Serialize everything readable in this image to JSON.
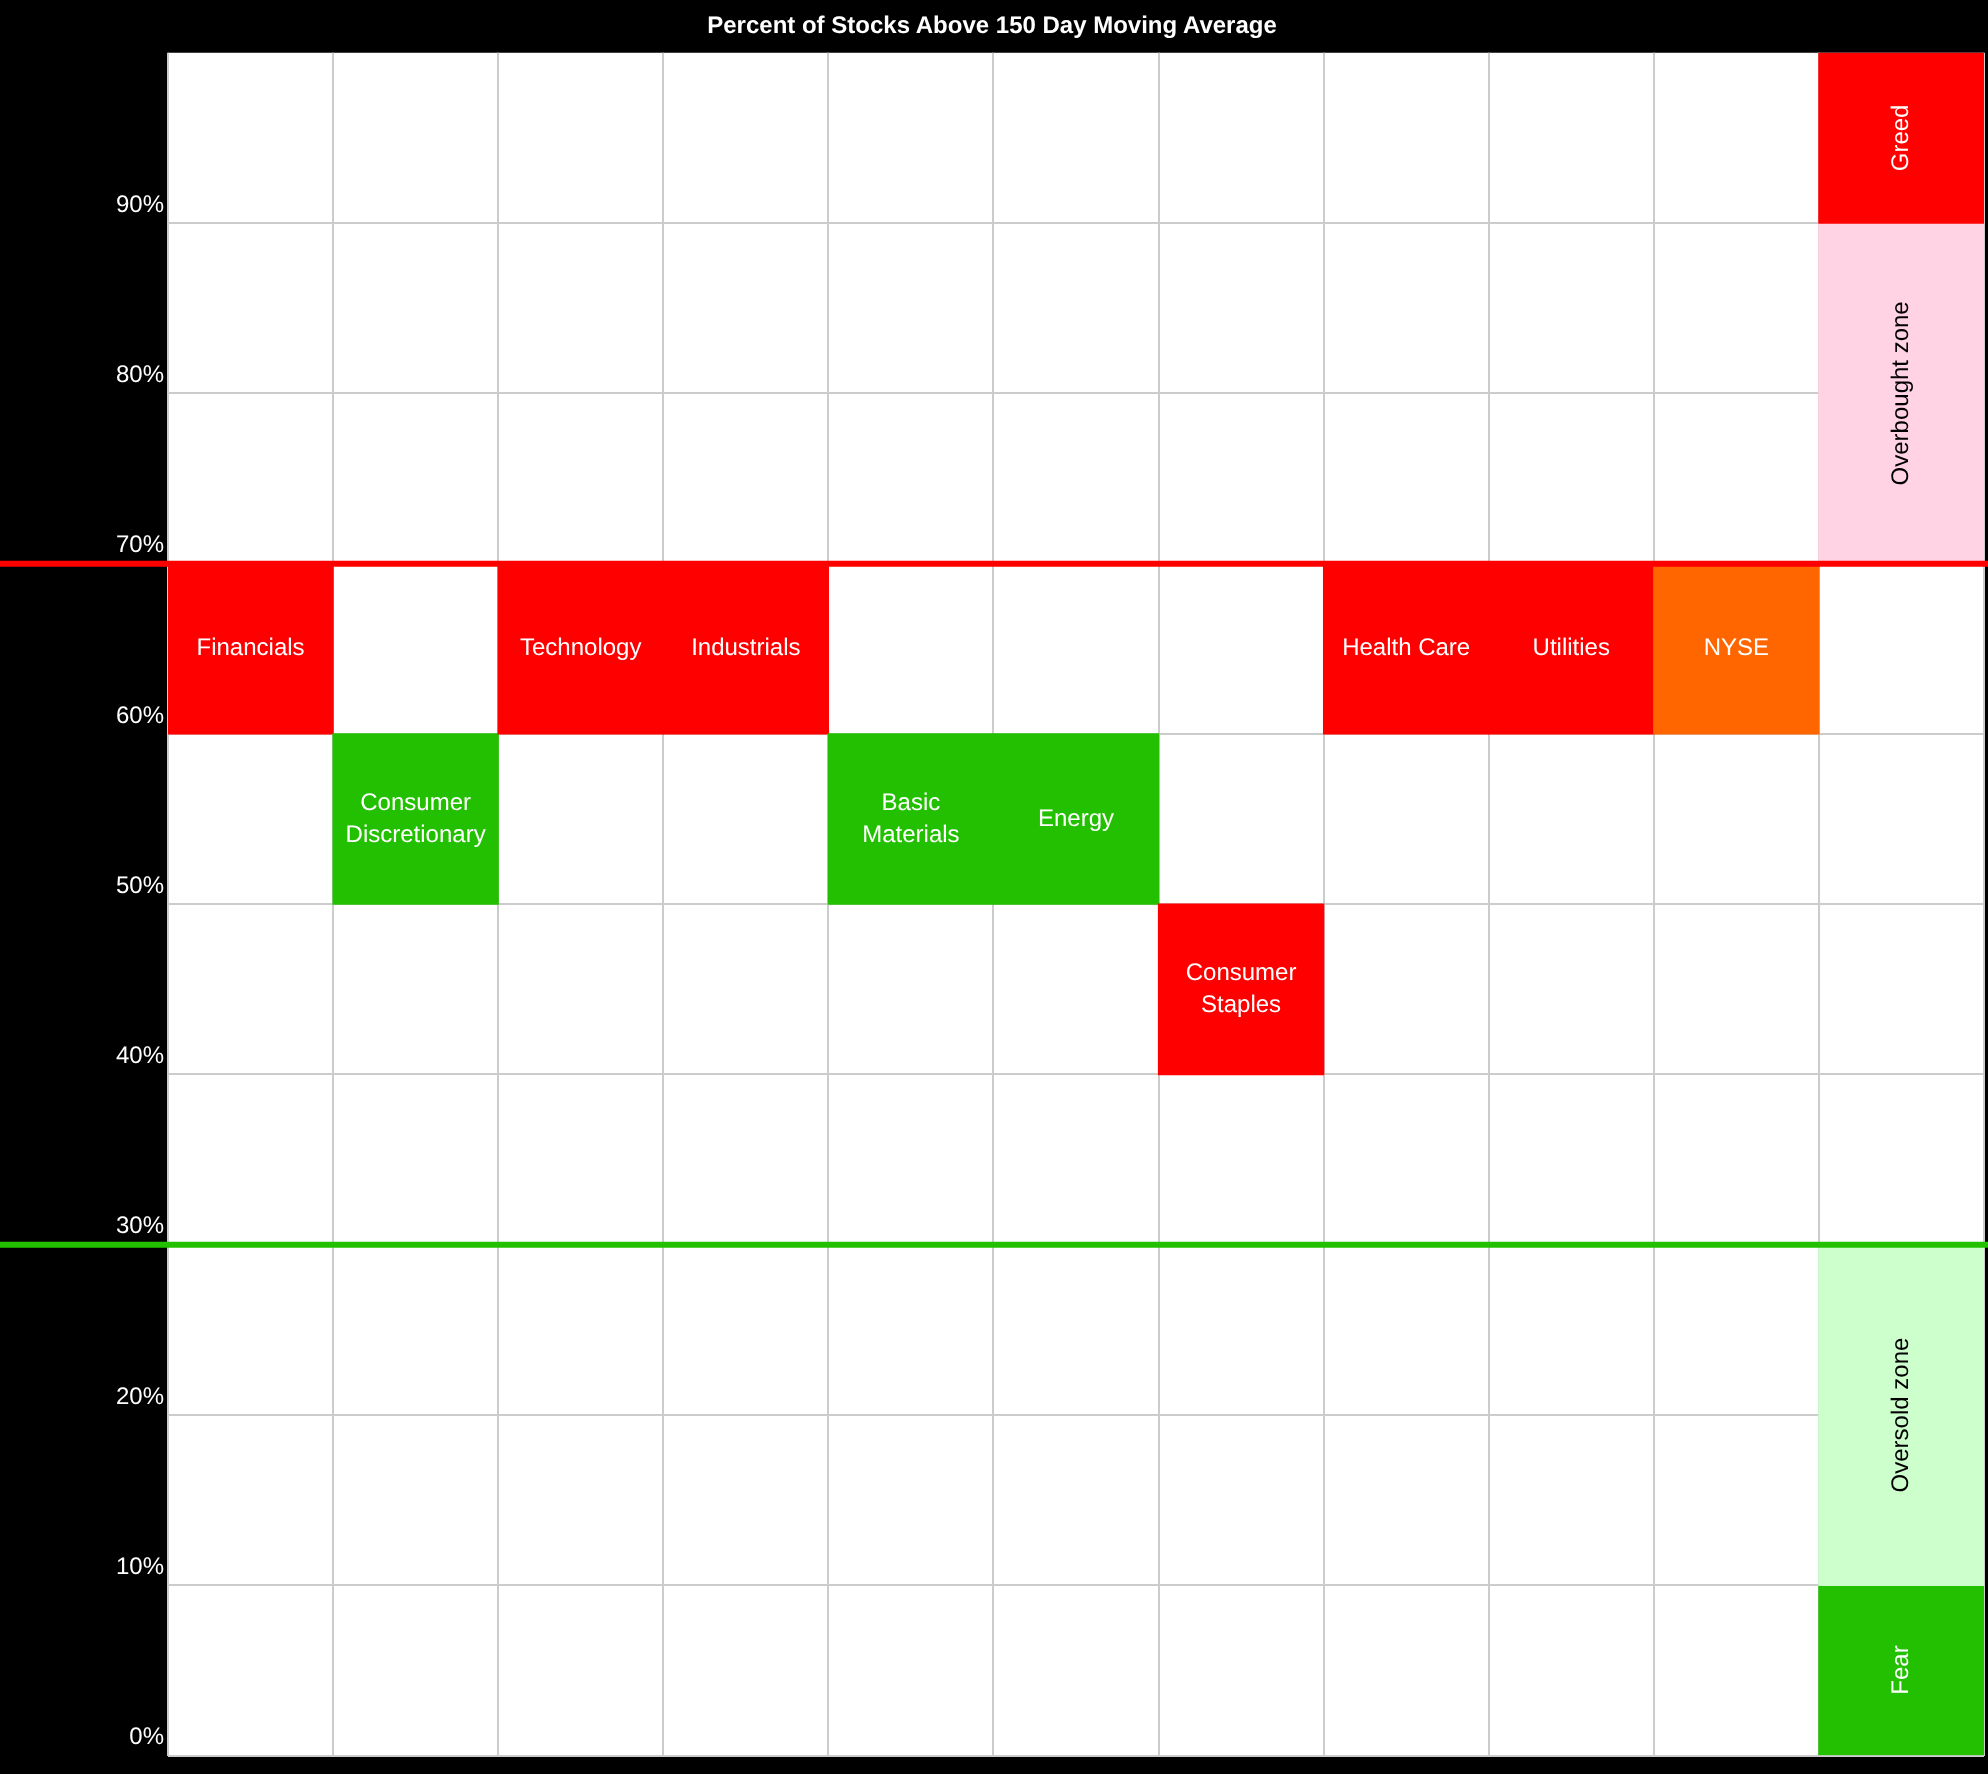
{
  "chart_data": {
    "type": "bar",
    "title": "Percent of Stocks Above 150 Day Moving Average",
    "categories": [
      "Financials",
      "Consumer Discretionary",
      "Technology",
      "Industrials",
      "Basic Materials",
      "Energy",
      "Consumer Staples",
      "Health Care",
      "Utilities",
      "NYSE",
      null
    ],
    "series": [
      {
        "colors": [
          "#ff0000",
          "#22c000",
          "#ff0000",
          "#ff0000",
          "#22c000",
          "#22c000",
          "#ff0000",
          "#ff0000",
          "#ff0000",
          "#ff6600",
          null
        ],
        "values": [
          10,
          10,
          10,
          10,
          10,
          10,
          10,
          10,
          10,
          10,
          null
        ],
        "base": [
          60,
          50,
          60,
          60,
          50,
          50,
          40,
          60,
          60,
          60,
          null
        ]
      },
      {
        "name": "Greed",
        "color": "#ff0000",
        "values": [
          null,
          null,
          null,
          null,
          null,
          null,
          null,
          null,
          null,
          null,
          10
        ],
        "base": [
          null,
          null,
          null,
          null,
          null,
          null,
          null,
          null,
          null,
          null,
          90
        ]
      },
      {
        "name": "Overbought zone",
        "color": "#ffd3e3",
        "values": [
          null,
          null,
          null,
          null,
          null,
          null,
          null,
          null,
          null,
          null,
          20
        ],
        "base": [
          null,
          null,
          null,
          null,
          null,
          null,
          null,
          null,
          null,
          null,
          70
        ]
      },
      {
        "name": "Oversold zone",
        "color": "#ccffcc",
        "values": [
          null,
          null,
          null,
          null,
          null,
          null,
          null,
          null,
          null,
          null,
          20
        ],
        "base": [
          null,
          null,
          null,
          null,
          null,
          null,
          null,
          null,
          null,
          null,
          10
        ]
      },
      {
        "name": "Fear",
        "color": "#22c000",
        "values": [
          null,
          null,
          null,
          null,
          null,
          null,
          null,
          null,
          null,
          null,
          10
        ],
        "base": [
          null,
          null,
          null,
          null,
          null,
          null,
          null,
          null,
          null,
          null,
          0
        ]
      }
    ],
    "ylim": [
      0,
      100
    ],
    "yticks": [
      {
        "value": 0,
        "label": "0%"
      },
      {
        "value": 10,
        "label": "10%"
      },
      {
        "value": 20,
        "label": "20%"
      },
      {
        "value": 30,
        "label": "30%"
      },
      {
        "value": 40,
        "label": "40%"
      },
      {
        "value": 50,
        "label": "50%"
      },
      {
        "value": 60,
        "label": "60%"
      },
      {
        "value": 70,
        "label": "70%"
      },
      {
        "value": 80,
        "label": "80%"
      },
      {
        "value": 90,
        "label": "90%"
      }
    ],
    "ref_lines": [
      {
        "axis": "y",
        "value": 70,
        "color": "#ff0000"
      },
      {
        "axis": "y",
        "value": 30,
        "color": "#22c000"
      }
    ],
    "grid": true,
    "legend": false,
    "tick_labels": "y"
  }
}
